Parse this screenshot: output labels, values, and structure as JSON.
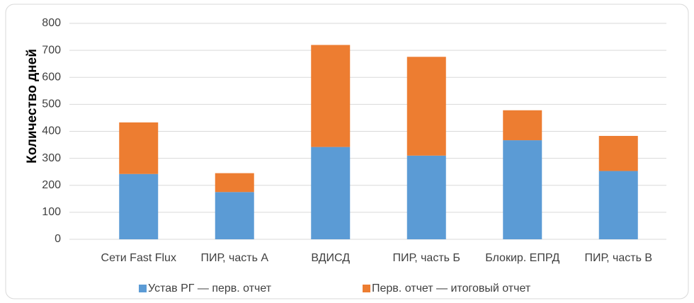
{
  "chart_data": {
    "type": "stacked_bar",
    "ylabel": "Количество дней",
    "categories": [
      "Сети Fast Flux",
      "ПИР, часть А",
      "ВДИСД",
      "ПИР, часть Б",
      "Блокир. ЕПРД",
      "ПИР, часть В"
    ],
    "series": [
      {
        "name": "Устав РГ — перв. отчет",
        "color": "#5b9bd5",
        "values": [
          242,
          175,
          342,
          310,
          367,
          253
        ]
      },
      {
        "name": "Перв. отчет — итоговый отчет",
        "color": "#ed7d31",
        "values": [
          191,
          70,
          378,
          366,
          111,
          130
        ]
      }
    ],
    "ylim": [
      0,
      800
    ],
    "yticks": [
      0,
      100,
      200,
      300,
      400,
      500,
      600,
      700,
      800
    ],
    "grid": true
  }
}
